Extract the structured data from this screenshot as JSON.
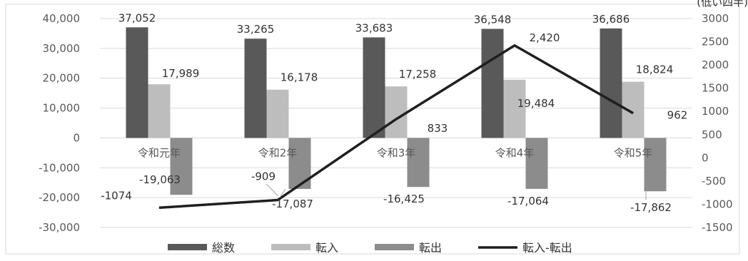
{
  "unit_note": "(低い四半)",
  "chart_data": {
    "type": "bar",
    "title": "",
    "categories": [
      "令和元年",
      "令和2年",
      "令和3年",
      "令和4年",
      "令和5年"
    ],
    "series": [
      {
        "name": "総数",
        "type": "bar",
        "axis": "left",
        "color": "#595959",
        "values": [
          37052,
          33265,
          33683,
          36548,
          36686
        ]
      },
      {
        "name": "転入",
        "type": "bar",
        "axis": "left",
        "color": "#bdbdbd",
        "values": [
          17989,
          16178,
          17258,
          19484,
          18824
        ]
      },
      {
        "name": "転出",
        "type": "bar",
        "axis": "left",
        "color": "#8c8c8c",
        "values": [
          -19063,
          -17087,
          -16425,
          -17064,
          -17862
        ]
      },
      {
        "name": "転入-転出",
        "type": "line",
        "axis": "right",
        "color": "#1f1f1f",
        "values": [
          -1074,
          -909,
          833,
          2420,
          962
        ]
      }
    ],
    "y_left": {
      "min": -30000,
      "max": 40000,
      "step": 10000,
      "tick_labels": [
        "40,000",
        "30,000",
        "20,000",
        "10,000",
        "0",
        "-10,000",
        "-20,000",
        "-30,000"
      ]
    },
    "y_right": {
      "min": -1500,
      "max": 3000,
      "step": 500,
      "tick_labels": [
        "3000",
        "2500",
        "2000",
        "1500",
        "1000",
        "500",
        "0",
        "-500",
        "-1000",
        "-1500"
      ]
    },
    "data_labels": {
      "総数": [
        "37,052",
        "33,265",
        "33,683",
        "36,548",
        "36,686"
      ],
      "転入": [
        "17,989",
        "16,178",
        "17,258",
        "19,484",
        "18,824"
      ],
      "転出": [
        "-19,063",
        "-17,087",
        "-16,425",
        "-17,064",
        "-17,862"
      ],
      "転入-転出": [
        "-1074",
        "-909",
        "833",
        "2,420",
        "962"
      ]
    },
    "grid": true,
    "legend_position": "bottom"
  }
}
